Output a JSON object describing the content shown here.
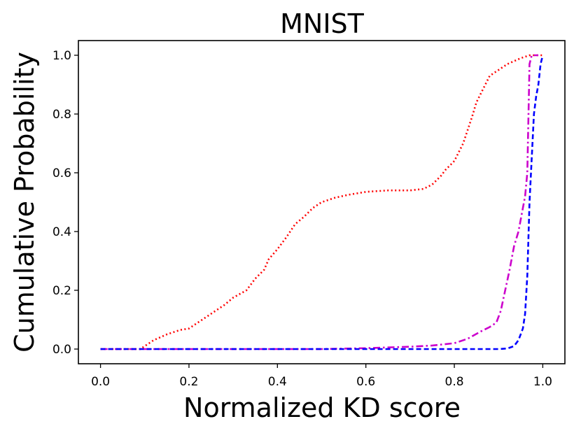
{
  "chart_data": {
    "type": "line",
    "title": "MNIST",
    "xlabel": "Normalized KD score",
    "ylabel": "Cumulative Probability",
    "xlim": [
      -0.05,
      1.05
    ],
    "ylim": [
      -0.05,
      1.05
    ],
    "xticks": [
      "0.0",
      "0.2",
      "0.4",
      "0.6",
      "0.8",
      "1.0"
    ],
    "yticks": [
      "0.0",
      "0.2",
      "0.4",
      "0.6",
      "0.8",
      "1.0"
    ],
    "xtick_values": [
      0.0,
      0.2,
      0.4,
      0.6,
      0.8,
      1.0
    ],
    "ytick_values": [
      0.0,
      0.2,
      0.4,
      0.6,
      0.8,
      1.0
    ],
    "grid": false,
    "series": [
      {
        "name": "red-dotted",
        "color": "#ff0000",
        "style": "dotted",
        "x": [
          0.0,
          0.05,
          0.09,
          0.1,
          0.12,
          0.15,
          0.18,
          0.2,
          0.22,
          0.25,
          0.28,
          0.3,
          0.33,
          0.35,
          0.37,
          0.38,
          0.4,
          0.42,
          0.44,
          0.46,
          0.48,
          0.5,
          0.53,
          0.56,
          0.6,
          0.65,
          0.7,
          0.73,
          0.75,
          0.77,
          0.78,
          0.8,
          0.82,
          0.84,
          0.85,
          0.87,
          0.88,
          0.9,
          0.92,
          0.95,
          0.97,
          1.0
        ],
        "y": [
          0.0,
          0.0,
          0.0,
          0.01,
          0.03,
          0.05,
          0.065,
          0.07,
          0.09,
          0.12,
          0.15,
          0.175,
          0.2,
          0.24,
          0.27,
          0.305,
          0.34,
          0.38,
          0.425,
          0.45,
          0.48,
          0.5,
          0.515,
          0.525,
          0.535,
          0.54,
          0.54,
          0.545,
          0.56,
          0.59,
          0.61,
          0.64,
          0.7,
          0.79,
          0.84,
          0.9,
          0.93,
          0.95,
          0.97,
          0.99,
          1.0,
          1.0
        ]
      },
      {
        "name": "magenta-dashdot",
        "color": "#cc00cc",
        "style": "dashdot",
        "x": [
          0.0,
          0.5,
          0.6,
          0.7,
          0.75,
          0.8,
          0.83,
          0.86,
          0.88,
          0.895,
          0.905,
          0.915,
          0.925,
          0.935,
          0.945,
          0.955,
          0.96,
          0.965,
          0.97,
          0.975,
          0.99
        ],
        "y": [
          0.0,
          0.0,
          0.003,
          0.008,
          0.012,
          0.02,
          0.035,
          0.06,
          0.075,
          0.09,
          0.13,
          0.2,
          0.27,
          0.35,
          0.4,
          0.48,
          0.52,
          0.6,
          0.97,
          1.0,
          1.0
        ]
      },
      {
        "name": "blue-dashed",
        "color": "#0000ff",
        "style": "dashed",
        "x": [
          0.0,
          0.9,
          0.92,
          0.935,
          0.945,
          0.955,
          0.96,
          0.965,
          0.97,
          0.975,
          0.98,
          0.985,
          0.99,
          0.995,
          1.0
        ],
        "y": [
          0.0,
          0.0,
          0.002,
          0.01,
          0.03,
          0.07,
          0.12,
          0.25,
          0.5,
          0.65,
          0.8,
          0.86,
          0.9,
          0.97,
          1.0
        ]
      }
    ]
  }
}
